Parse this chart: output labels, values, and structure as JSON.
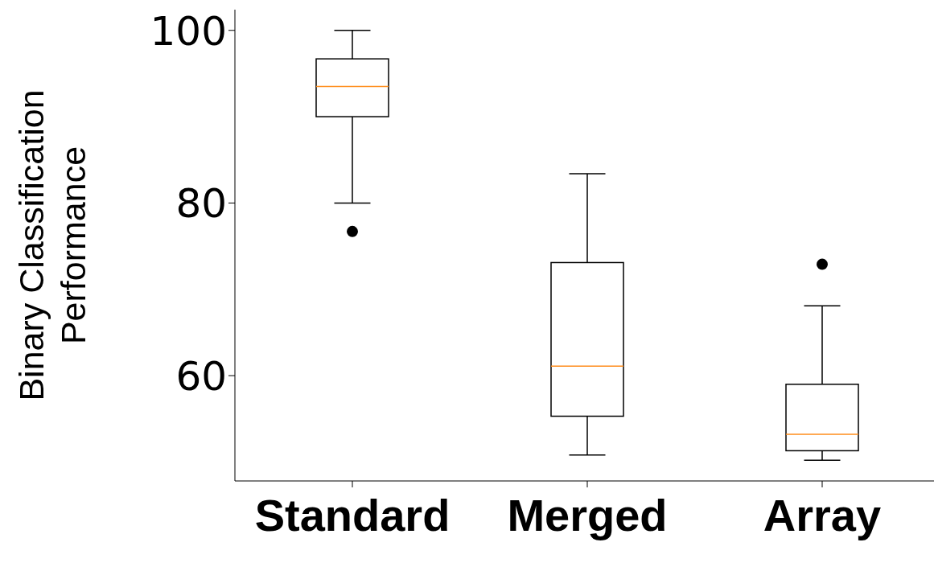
{
  "chart_data": {
    "type": "box",
    "ylabel": "Binary Classification Performance",
    "categories": [
      "Standard",
      "Merged",
      "Array"
    ],
    "boxes": [
      {
        "low": 80,
        "q1": 90,
        "median": 93.5,
        "q3": 96.7,
        "high": 100,
        "outliers": [
          76.7
        ]
      },
      {
        "low": 50.8,
        "q1": 55.3,
        "median": 61.1,
        "q3": 73.1,
        "high": 83.4
      },
      {
        "low": 50.2,
        "q1": 51.3,
        "median": 53.2,
        "q3": 59,
        "high": 68.1,
        "outliers": [
          72.9
        ]
      }
    ],
    "ylim": [
      47.8,
      102.4
    ],
    "yticks": [
      60,
      80,
      100
    ],
    "grid": false
  }
}
